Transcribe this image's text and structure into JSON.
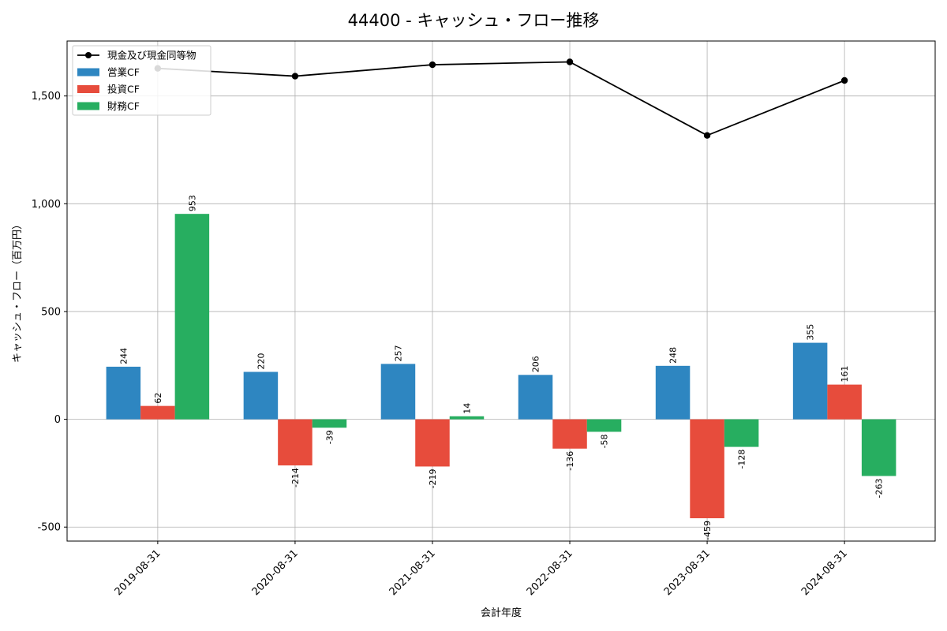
{
  "chart_data": {
    "type": "bar",
    "title": "44400 - キャッシュ・フロー推移",
    "xlabel": "会計年度",
    "ylabel": "キャッシュ・フロー（百万円）",
    "categories": [
      "2019-08-31",
      "2020-08-31",
      "2021-08-31",
      "2022-08-31",
      "2023-08-31",
      "2024-08-31"
    ],
    "series": [
      {
        "name": "営業CF",
        "type": "bar",
        "color": "#2e86c1",
        "values": [
          244,
          220,
          257,
          206,
          248,
          355
        ]
      },
      {
        "name": "投資CF",
        "type": "bar",
        "color": "#e74c3c",
        "values": [
          62,
          -214,
          -219,
          -136,
          -459,
          161
        ]
      },
      {
        "name": "財務CF",
        "type": "bar",
        "color": "#27ae60",
        "values": [
          953,
          -39,
          14,
          -58,
          -128,
          -263
        ]
      },
      {
        "name": "現金及び現金同等物",
        "type": "line",
        "color": "#000000",
        "values": [
          1628,
          1592,
          1645,
          1658,
          1317,
          1572
        ]
      }
    ],
    "ylim": [
      -565,
      1755
    ],
    "yticks": [
      -500,
      0,
      500,
      1000,
      1500
    ],
    "ytick_labels": [
      "-500",
      "0",
      "500",
      "1,000",
      "1,500"
    ],
    "grid": true,
    "legend": "top-left"
  }
}
